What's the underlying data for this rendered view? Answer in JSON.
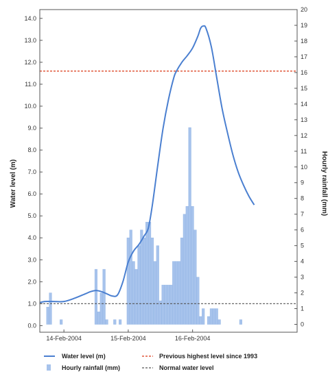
{
  "chart_data": {
    "type": "bar+line",
    "left_axis": {
      "label": "Water level (m)",
      "range": [
        -0.3,
        14.4
      ],
      "ticks": [
        "0.0",
        "1.0",
        "2.0",
        "3.0",
        "4.0",
        "5.0",
        "6.0",
        "7.0",
        "8.0",
        "9.0",
        "10.0",
        "11.0",
        "12.0",
        "13.0",
        "14.0"
      ]
    },
    "right_axis": {
      "label": "Hourly rainfall (mm)",
      "range": [
        -0.5,
        20
      ],
      "ticks": [
        "0",
        "1",
        "2",
        "3",
        "4",
        "5",
        "6",
        "7",
        "8",
        "9",
        "10",
        "11",
        "12",
        "13",
        "14",
        "15",
        "16",
        "17",
        "18",
        "19",
        "20"
      ]
    },
    "x_axis": {
      "unit": "hours from 14-Feb-2004 00:00",
      "range": [
        -9,
        87
      ],
      "ticks": [
        {
          "x": 0,
          "label": "14-Feb-2004"
        },
        {
          "x": 24,
          "label": "15-Feb-2004"
        },
        {
          "x": 48,
          "label": "16-Feb-2004"
        }
      ]
    },
    "series": [
      {
        "name": "Water level (m)",
        "type": "line",
        "axis": "left",
        "color": "#4a7fd0",
        "points": [
          [
            -9,
            1.05
          ],
          [
            -7,
            1.1
          ],
          [
            -4,
            1.1
          ],
          [
            0,
            1.1
          ],
          [
            4,
            1.25
          ],
          [
            8,
            1.45
          ],
          [
            10,
            1.55
          ],
          [
            12,
            1.6
          ],
          [
            14,
            1.55
          ],
          [
            16,
            1.45
          ],
          [
            18,
            1.35
          ],
          [
            20,
            1.4
          ],
          [
            22,
            2.0
          ],
          [
            24,
            2.9
          ],
          [
            26,
            3.4
          ],
          [
            28,
            3.7
          ],
          [
            30,
            4.1
          ],
          [
            31.5,
            4.45
          ],
          [
            33,
            5.5
          ],
          [
            35,
            7.3
          ],
          [
            37,
            9.0
          ],
          [
            39,
            10.3
          ],
          [
            41,
            11.3
          ],
          [
            42,
            11.6
          ],
          [
            44,
            12.0
          ],
          [
            46,
            12.3
          ],
          [
            48,
            12.65
          ],
          [
            50,
            13.2
          ],
          [
            51,
            13.55
          ],
          [
            52,
            13.65
          ],
          [
            53,
            13.55
          ],
          [
            55,
            12.7
          ],
          [
            57,
            11.3
          ],
          [
            59,
            9.9
          ],
          [
            61,
            8.8
          ],
          [
            63,
            7.8
          ],
          [
            65,
            7.0
          ],
          [
            67,
            6.4
          ],
          [
            69,
            5.9
          ],
          [
            71,
            5.5
          ]
        ]
      },
      {
        "name": "Hourly rainfall (mm)",
        "type": "bar",
        "axis": "right",
        "color": "#a7c3ec",
        "x": [
          -6,
          -5,
          -1,
          12,
          13,
          14,
          15,
          16,
          19,
          21,
          24,
          25,
          26,
          27,
          28,
          29,
          30,
          31,
          32,
          33,
          34,
          35,
          36,
          37,
          38,
          39,
          40,
          41,
          42,
          43,
          44,
          45,
          46,
          47,
          48,
          49,
          50,
          51,
          52,
          54,
          55,
          56,
          57,
          58,
          66
        ],
        "values": [
          1.1,
          2.0,
          0.3,
          3.5,
          0.8,
          2.0,
          3.5,
          0.3,
          0.3,
          0.3,
          5.5,
          6.0,
          4.0,
          3.5,
          5.0,
          6.0,
          5.5,
          6.5,
          6.5,
          5.5,
          4.0,
          5.0,
          1.5,
          2.5,
          2.5,
          2.5,
          2.5,
          4.0,
          4.0,
          4.0,
          5.5,
          7.0,
          7.5,
          12.5,
          7.5,
          6.0,
          3.0,
          0.5,
          1.0,
          0.5,
          1.0,
          1.0,
          1.0,
          0.3,
          0.3
        ]
      },
      {
        "name": "Previous highest level since 1993",
        "type": "hline",
        "axis": "left",
        "value": 11.6,
        "color": "#e0573a"
      },
      {
        "name": "Normal water level",
        "type": "hline",
        "axis": "left",
        "value": 1.0,
        "color": "#555555"
      }
    ],
    "legend": {
      "position": "bottom",
      "items": [
        "Water level (m)",
        "Hourly rainfall (mm)",
        "Previous highest level since 1993",
        "Normal water level"
      ]
    },
    "grid": false
  }
}
